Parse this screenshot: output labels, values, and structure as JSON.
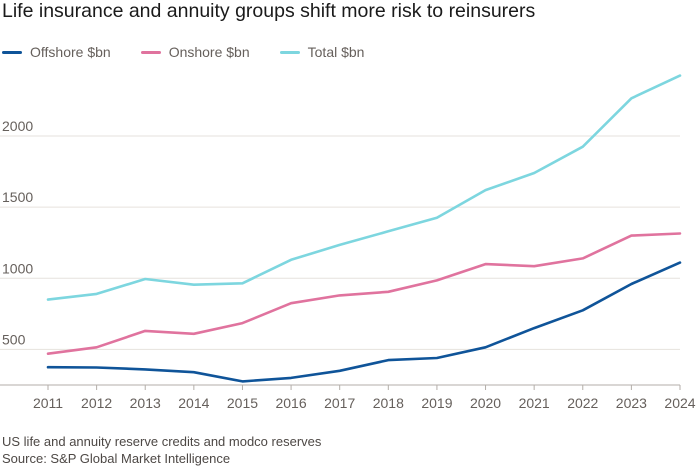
{
  "title": "Life insurance and annuity groups shift more risk to reinsurers",
  "notes": [
    "US life and annuity reserve credits and modco reserves",
    "Source: S&P Global Market Intelligence"
  ],
  "chart_data": {
    "type": "line",
    "title": "Life insurance and annuity groups shift more risk to reinsurers",
    "xlabel": "",
    "ylabel": "",
    "x": [
      2011,
      2012,
      2013,
      2014,
      2015,
      2016,
      2017,
      2018,
      2019,
      2020,
      2021,
      2022,
      2023,
      2024
    ],
    "ylim": [
      250,
      2450
    ],
    "yticks": [
      500,
      1000,
      1500,
      2000
    ],
    "grid": true,
    "legend_placement": "top-left",
    "series": [
      {
        "name": "Offshore $bn",
        "color": "#0f5499",
        "values": [
          375,
          373,
          360,
          340,
          275,
          300,
          350,
          425,
          440,
          515,
          650,
          775,
          960,
          1110
        ]
      },
      {
        "name": "Onshore $bn",
        "color": "#e0739e",
        "values": [
          470,
          515,
          630,
          610,
          685,
          825,
          880,
          905,
          985,
          1100,
          1085,
          1140,
          1300,
          1315
        ]
      },
      {
        "name": "Total $bn",
        "color": "#7dd6df",
        "values": [
          850,
          890,
          995,
          955,
          965,
          1130,
          1235,
          1330,
          1425,
          1620,
          1740,
          1925,
          2265,
          2425
        ]
      }
    ]
  }
}
